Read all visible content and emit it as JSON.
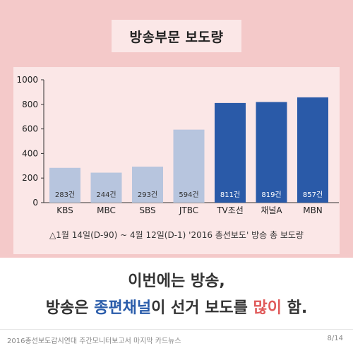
{
  "title": "방송부문 보도량",
  "chart_data": {
    "type": "bar",
    "categories": [
      "KBS",
      "MBC",
      "SBS",
      "JTBC",
      "TV조선",
      "채널A",
      "MBN"
    ],
    "values": [
      283,
      244,
      293,
      594,
      811,
      819,
      857
    ],
    "value_labels": [
      "283건",
      "244건",
      "293건",
      "594건",
      "811건",
      "819건",
      "857건"
    ],
    "bar_colors": [
      "#b7c5de",
      "#b7c5de",
      "#b7c5de",
      "#b7c5de",
      "#2a5aa8",
      "#2a5aa8",
      "#2a5aa8"
    ],
    "label_colors": [
      "#333333",
      "#333333",
      "#333333",
      "#333333",
      "#ffffff",
      "#ffffff",
      "#ffffff"
    ],
    "yticks": [
      0,
      200,
      400,
      600,
      800,
      1000
    ],
    "ylim": [
      0,
      1000
    ],
    "grid": false
  },
  "note": "△1월 14일(D-90) ~ 4월 12일(D-1) '2016 총선보도' 방송 총 보도량",
  "message": {
    "line1": "이번에는 방송,",
    "line2_part1": "방송은 ",
    "line2_highlight1": "종편채널",
    "line2_part2": "이 선거 보도를 ",
    "line2_highlight2": "많이",
    "line2_part3": " 함."
  },
  "footer": {
    "source": "2016총선보도감시연대 주간모니터보고서 마지막 카드뉴스",
    "page": "8/14"
  },
  "colors": {
    "background": "#f4c9c9",
    "panel": "#fbe7e7",
    "terrestrial": "#b7c5de",
    "cable": "#2a5aa8",
    "highlight_blue": "#2a5caa",
    "highlight_red": "#e05a5a"
  }
}
